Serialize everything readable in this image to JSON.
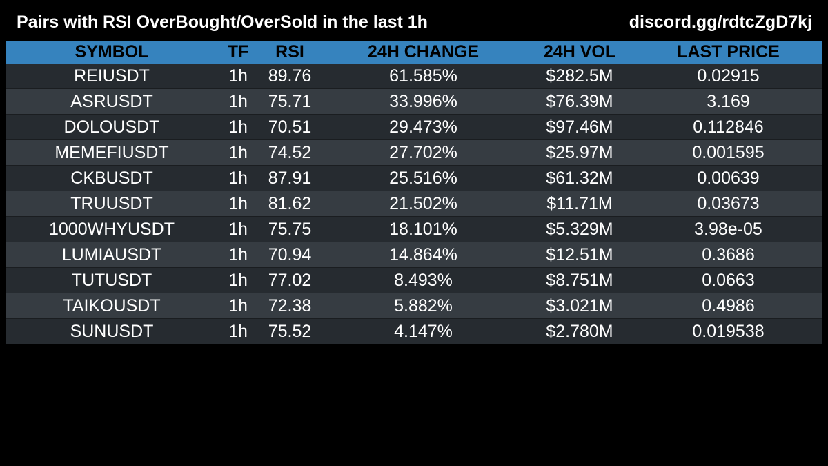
{
  "header": {
    "title": "Pairs with RSI OverBought/OverSold in the last 1h",
    "discord": "discord.gg/rdtcZgD7kj"
  },
  "table": {
    "columns": [
      "SYMBOL",
      "TF",
      "RSI",
      "24H CHANGE",
      "24H VOL",
      "LAST PRICE"
    ],
    "rows": [
      [
        "REIUSDT",
        "1h",
        "89.76",
        "61.585%",
        "$282.5M",
        "0.02915"
      ],
      [
        "ASRUSDT",
        "1h",
        "75.71",
        "33.996%",
        "$76.39M",
        "3.169"
      ],
      [
        "DOLOUSDT",
        "1h",
        "70.51",
        "29.473%",
        "$97.46M",
        "0.112846"
      ],
      [
        "MEMEFIUSDT",
        "1h",
        "74.52",
        "27.702%",
        "$25.97M",
        "0.001595"
      ],
      [
        "CKBUSDT",
        "1h",
        "87.91",
        "25.516%",
        "$61.32M",
        "0.00639"
      ],
      [
        "TRUUSDT",
        "1h",
        "81.62",
        "21.502%",
        "$11.71M",
        "0.03673"
      ],
      [
        "1000WHYUSDT",
        "1h",
        "75.75",
        "18.101%",
        "$5.329M",
        "3.98e-05"
      ],
      [
        "LUMIAUSDT",
        "1h",
        "70.94",
        "14.864%",
        "$12.51M",
        "0.3686"
      ],
      [
        "TUTUSDT",
        "1h",
        "77.02",
        "8.493%",
        "$8.751M",
        "0.0663"
      ],
      [
        "TAIKOUSDT",
        "1h",
        "72.38",
        "5.882%",
        "$3.021M",
        "0.4986"
      ],
      [
        "SUNUSDT",
        "1h",
        "75.52",
        "4.147%",
        "$2.780M",
        "0.019538"
      ]
    ]
  },
  "colors": {
    "background": "#000000",
    "header_row": "#3683be",
    "row_odd": "#262b30",
    "row_even": "#363c42",
    "text": "#ffffff"
  }
}
